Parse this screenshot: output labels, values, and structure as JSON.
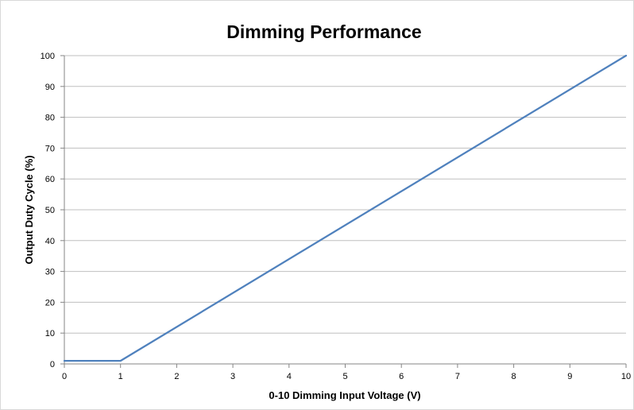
{
  "chart_data": {
    "type": "line",
    "title": "Dimming Performance",
    "xlabel": "0-10 Dimming Input Voltage (V)",
    "ylabel": "Output Duty Cycle (%)",
    "xlim": [
      0,
      10
    ],
    "ylim": [
      0,
      100
    ],
    "x_ticks": [
      "0",
      "1",
      "2",
      "3",
      "4",
      "5",
      "6",
      "7",
      "8",
      "9",
      "10"
    ],
    "y_ticks": [
      "0",
      "10",
      "20",
      "30",
      "40",
      "50",
      "60",
      "70",
      "80",
      "90",
      "100"
    ],
    "grid": "horizontal",
    "legend": "none",
    "series": [
      {
        "color": "#4f81bd",
        "x": [
          0,
          1,
          10
        ],
        "y": [
          1,
          1,
          100
        ]
      }
    ],
    "colors": {
      "gridline": "#bfbfbf",
      "axis": "#868686",
      "border": "#d9d9d9"
    }
  }
}
